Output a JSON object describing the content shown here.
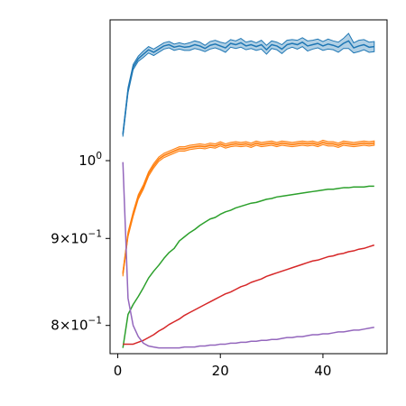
{
  "chart_data": {
    "type": "line",
    "title": "",
    "xlabel": "",
    "ylabel": "",
    "x_scale": "linear",
    "y_scale": "log",
    "xlim": [
      -1.5,
      52.5
    ],
    "ylim": [
      0.77,
      1.21
    ],
    "grid": false,
    "legend": "none",
    "x_ticks": [
      {
        "value": 0,
        "label": "0"
      },
      {
        "value": 20,
        "label": "20"
      },
      {
        "value": 40,
        "label": "40"
      }
    ],
    "y_ticks": [
      {
        "value": 1.0,
        "base": "10",
        "exp": "0",
        "label": "10^0"
      },
      {
        "value": 0.9,
        "mant": "9",
        "base": "10",
        "exp": "−1",
        "label": "9×10^−1"
      },
      {
        "value": 0.8,
        "mant": "8",
        "base": "10",
        "exp": "−1",
        "label": "8×10^−1"
      }
    ],
    "series": [
      {
        "color": "#1f77b4",
        "band": true,
        "x": [
          1,
          2,
          3,
          4,
          5,
          6,
          7,
          8,
          9,
          10,
          11,
          12,
          13,
          14,
          15,
          16,
          17,
          18,
          19,
          20,
          21,
          22,
          23,
          24,
          25,
          26,
          27,
          28,
          29,
          30,
          31,
          32,
          33,
          34,
          35,
          36,
          37,
          38,
          39,
          40,
          41,
          42,
          43,
          44,
          45,
          46,
          47,
          48,
          49,
          50
        ],
        "values": [
          1.036,
          1.1,
          1.135,
          1.148,
          1.155,
          1.162,
          1.158,
          1.163,
          1.168,
          1.17,
          1.166,
          1.168,
          1.166,
          1.167,
          1.17,
          1.168,
          1.164,
          1.169,
          1.171,
          1.168,
          1.165,
          1.172,
          1.17,
          1.173,
          1.168,
          1.17,
          1.167,
          1.17,
          1.162,
          1.17,
          1.168,
          1.163,
          1.17,
          1.172,
          1.17,
          1.174,
          1.168,
          1.17,
          1.172,
          1.168,
          1.171,
          1.169,
          1.166,
          1.172,
          1.176,
          1.165,
          1.168,
          1.17,
          1.166,
          1.167
        ],
        "band_width": [
          0.003,
          0.004,
          0.004,
          0.004,
          0.005,
          0.005,
          0.005,
          0.005,
          0.005,
          0.005,
          0.005,
          0.005,
          0.005,
          0.006,
          0.006,
          0.006,
          0.005,
          0.006,
          0.006,
          0.006,
          0.007,
          0.006,
          0.006,
          0.007,
          0.006,
          0.006,
          0.006,
          0.007,
          0.007,
          0.006,
          0.006,
          0.007,
          0.007,
          0.006,
          0.007,
          0.007,
          0.008,
          0.007,
          0.007,
          0.007,
          0.008,
          0.007,
          0.008,
          0.008,
          0.012,
          0.008,
          0.009,
          0.008,
          0.008,
          0.008
        ]
      },
      {
        "color": "#ff7f0e",
        "band": true,
        "x": [
          1,
          2,
          3,
          4,
          5,
          6,
          7,
          8,
          9,
          10,
          11,
          12,
          13,
          14,
          15,
          16,
          17,
          18,
          19,
          20,
          21,
          22,
          23,
          24,
          25,
          26,
          27,
          28,
          29,
          30,
          31,
          32,
          33,
          34,
          35,
          36,
          37,
          38,
          39,
          40,
          41,
          42,
          43,
          44,
          45,
          46,
          47,
          48,
          49,
          50
        ],
        "values": [
          0.858,
          0.905,
          0.93,
          0.952,
          0.965,
          0.982,
          0.993,
          1.002,
          1.007,
          1.01,
          1.013,
          1.016,
          1.016,
          1.018,
          1.019,
          1.02,
          1.019,
          1.021,
          1.02,
          1.023,
          1.02,
          1.022,
          1.023,
          1.022,
          1.023,
          1.021,
          1.024,
          1.022,
          1.023,
          1.024,
          1.022,
          1.024,
          1.023,
          1.022,
          1.023,
          1.024,
          1.023,
          1.024,
          1.022,
          1.025,
          1.023,
          1.023,
          1.021,
          1.024,
          1.023,
          1.022,
          1.023,
          1.024,
          1.023,
          1.024
        ],
        "band_width": [
          0.003,
          0.003,
          0.003,
          0.003,
          0.003,
          0.003,
          0.003,
          0.003,
          0.003,
          0.003,
          0.003,
          0.003,
          0.003,
          0.003,
          0.003,
          0.003,
          0.003,
          0.003,
          0.003,
          0.003,
          0.003,
          0.003,
          0.003,
          0.003,
          0.003,
          0.003,
          0.003,
          0.003,
          0.003,
          0.003,
          0.003,
          0.003,
          0.003,
          0.003,
          0.003,
          0.003,
          0.003,
          0.003,
          0.003,
          0.003,
          0.003,
          0.003,
          0.003,
          0.003,
          0.003,
          0.003,
          0.003,
          0.003,
          0.003,
          0.003
        ]
      },
      {
        "color": "#2ca02c",
        "band": false,
        "x": [
          1,
          2,
          3,
          4,
          5,
          6,
          7,
          8,
          9,
          10,
          11,
          12,
          13,
          14,
          15,
          16,
          17,
          18,
          19,
          20,
          21,
          22,
          23,
          24,
          25,
          26,
          27,
          28,
          29,
          30,
          31,
          32,
          33,
          34,
          35,
          36,
          37,
          38,
          39,
          40,
          41,
          42,
          43,
          44,
          45,
          46,
          47,
          48,
          49,
          50
        ],
        "values": [
          0.776,
          0.812,
          0.823,
          0.832,
          0.842,
          0.853,
          0.861,
          0.868,
          0.876,
          0.883,
          0.888,
          0.897,
          0.902,
          0.907,
          0.911,
          0.916,
          0.92,
          0.924,
          0.926,
          0.93,
          0.933,
          0.935,
          0.938,
          0.94,
          0.942,
          0.944,
          0.945,
          0.947,
          0.949,
          0.95,
          0.952,
          0.953,
          0.954,
          0.955,
          0.956,
          0.957,
          0.958,
          0.959,
          0.96,
          0.961,
          0.962,
          0.962,
          0.963,
          0.964,
          0.964,
          0.965,
          0.965,
          0.965,
          0.966,
          0.966
        ]
      },
      {
        "color": "#d62728",
        "band": false,
        "x": [
          1,
          2,
          3,
          4,
          5,
          6,
          7,
          8,
          9,
          10,
          11,
          12,
          13,
          14,
          15,
          16,
          17,
          18,
          19,
          20,
          21,
          22,
          23,
          24,
          25,
          26,
          27,
          28,
          29,
          30,
          31,
          32,
          33,
          34,
          35,
          36,
          37,
          38,
          39,
          40,
          41,
          42,
          43,
          44,
          45,
          46,
          47,
          48,
          49,
          50
        ],
        "values": [
          0.78,
          0.78,
          0.78,
          0.782,
          0.784,
          0.787,
          0.79,
          0.794,
          0.797,
          0.801,
          0.804,
          0.807,
          0.811,
          0.814,
          0.817,
          0.82,
          0.823,
          0.826,
          0.829,
          0.832,
          0.835,
          0.837,
          0.84,
          0.843,
          0.845,
          0.848,
          0.85,
          0.852,
          0.855,
          0.857,
          0.859,
          0.861,
          0.863,
          0.865,
          0.867,
          0.869,
          0.871,
          0.873,
          0.874,
          0.876,
          0.878,
          0.879,
          0.881,
          0.882,
          0.884,
          0.885,
          0.887,
          0.888,
          0.89,
          0.892
        ]
      },
      {
        "color": "#9467bd",
        "band": false,
        "x": [
          1,
          2,
          3,
          4,
          5,
          6,
          7,
          8,
          9,
          10,
          11,
          12,
          13,
          14,
          15,
          16,
          17,
          18,
          19,
          20,
          21,
          22,
          23,
          24,
          25,
          26,
          27,
          28,
          29,
          30,
          31,
          32,
          33,
          34,
          35,
          36,
          37,
          38,
          39,
          40,
          41,
          42,
          43,
          44,
          45,
          46,
          47,
          48,
          49,
          50
        ],
        "values": [
          0.998,
          0.83,
          0.8,
          0.788,
          0.781,
          0.778,
          0.777,
          0.776,
          0.776,
          0.776,
          0.776,
          0.776,
          0.777,
          0.777,
          0.777,
          0.778,
          0.778,
          0.779,
          0.779,
          0.78,
          0.78,
          0.781,
          0.781,
          0.782,
          0.782,
          0.783,
          0.783,
          0.784,
          0.784,
          0.785,
          0.785,
          0.786,
          0.787,
          0.787,
          0.788,
          0.788,
          0.789,
          0.79,
          0.79,
          0.791,
          0.791,
          0.792,
          0.793,
          0.793,
          0.794,
          0.795,
          0.795,
          0.796,
          0.797,
          0.798
        ]
      }
    ]
  }
}
